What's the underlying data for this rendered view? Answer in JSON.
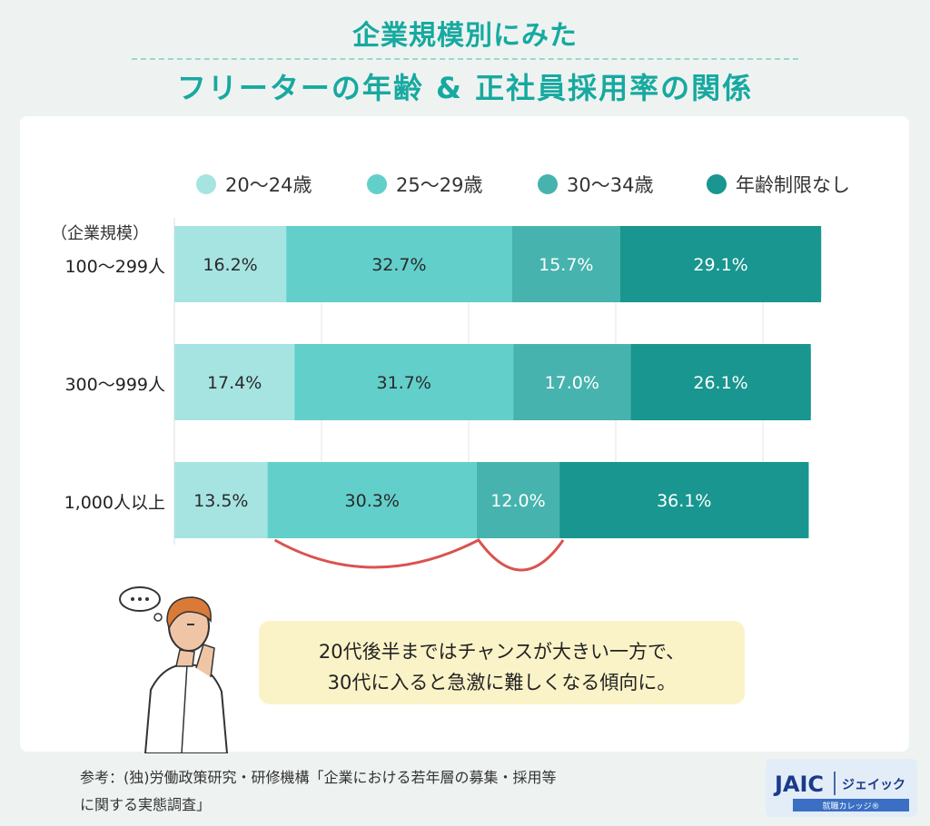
{
  "title_line1": "企業規模別にみた",
  "title_line2": "フリーターの年齢 & 正社員採用率の関係",
  "chart_data": {
    "type": "bar",
    "orientation": "horizontal",
    "stacked": true,
    "y_axis_caption": "（企業規模）",
    "categories": [
      "100〜299人",
      "300〜999人",
      "1,000人以上"
    ],
    "series": [
      {
        "name": "20〜24歳",
        "values": [
          16.2,
          17.4,
          13.5
        ],
        "labels": [
          "16.2%",
          "17.4%",
          "13.5%"
        ]
      },
      {
        "name": "25〜29歳",
        "values": [
          32.7,
          31.7,
          30.3
        ],
        "labels": [
          "32.7%",
          "31.7%",
          "30.3%"
        ]
      },
      {
        "name": "30〜34歳",
        "values": [
          15.7,
          17.0,
          12.0
        ],
        "labels": [
          "15.7%",
          "17.0%",
          "12.0%"
        ]
      },
      {
        "name": "年齢制限なし",
        "values": [
          29.1,
          26.1,
          36.1
        ],
        "labels": [
          "29.1%",
          "26.1%",
          "36.1%"
        ]
      }
    ],
    "colors": [
      "#a6e4e2",
      "#62cfcb",
      "#46b3ae",
      "#18968f"
    ],
    "legend_position": "top",
    "grid": true
  },
  "callout": {
    "line1": "20代後半まではチャンスが大きい一方で、",
    "line2": "30代に入ると急激に難しくなる傾向に。"
  },
  "source": {
    "line1": "参考：(独)労働政策研究・研修機構「企業における若年層の募集・採用等",
    "line2": "に関する実態調査」"
  },
  "logo": {
    "mark": "JAIC",
    "name": "ジェイック",
    "sub": "就職カレッジ®"
  },
  "colors": {
    "title": "#17a9a0",
    "bracket": "#d9534f",
    "bubble": "#fbf3c8"
  }
}
